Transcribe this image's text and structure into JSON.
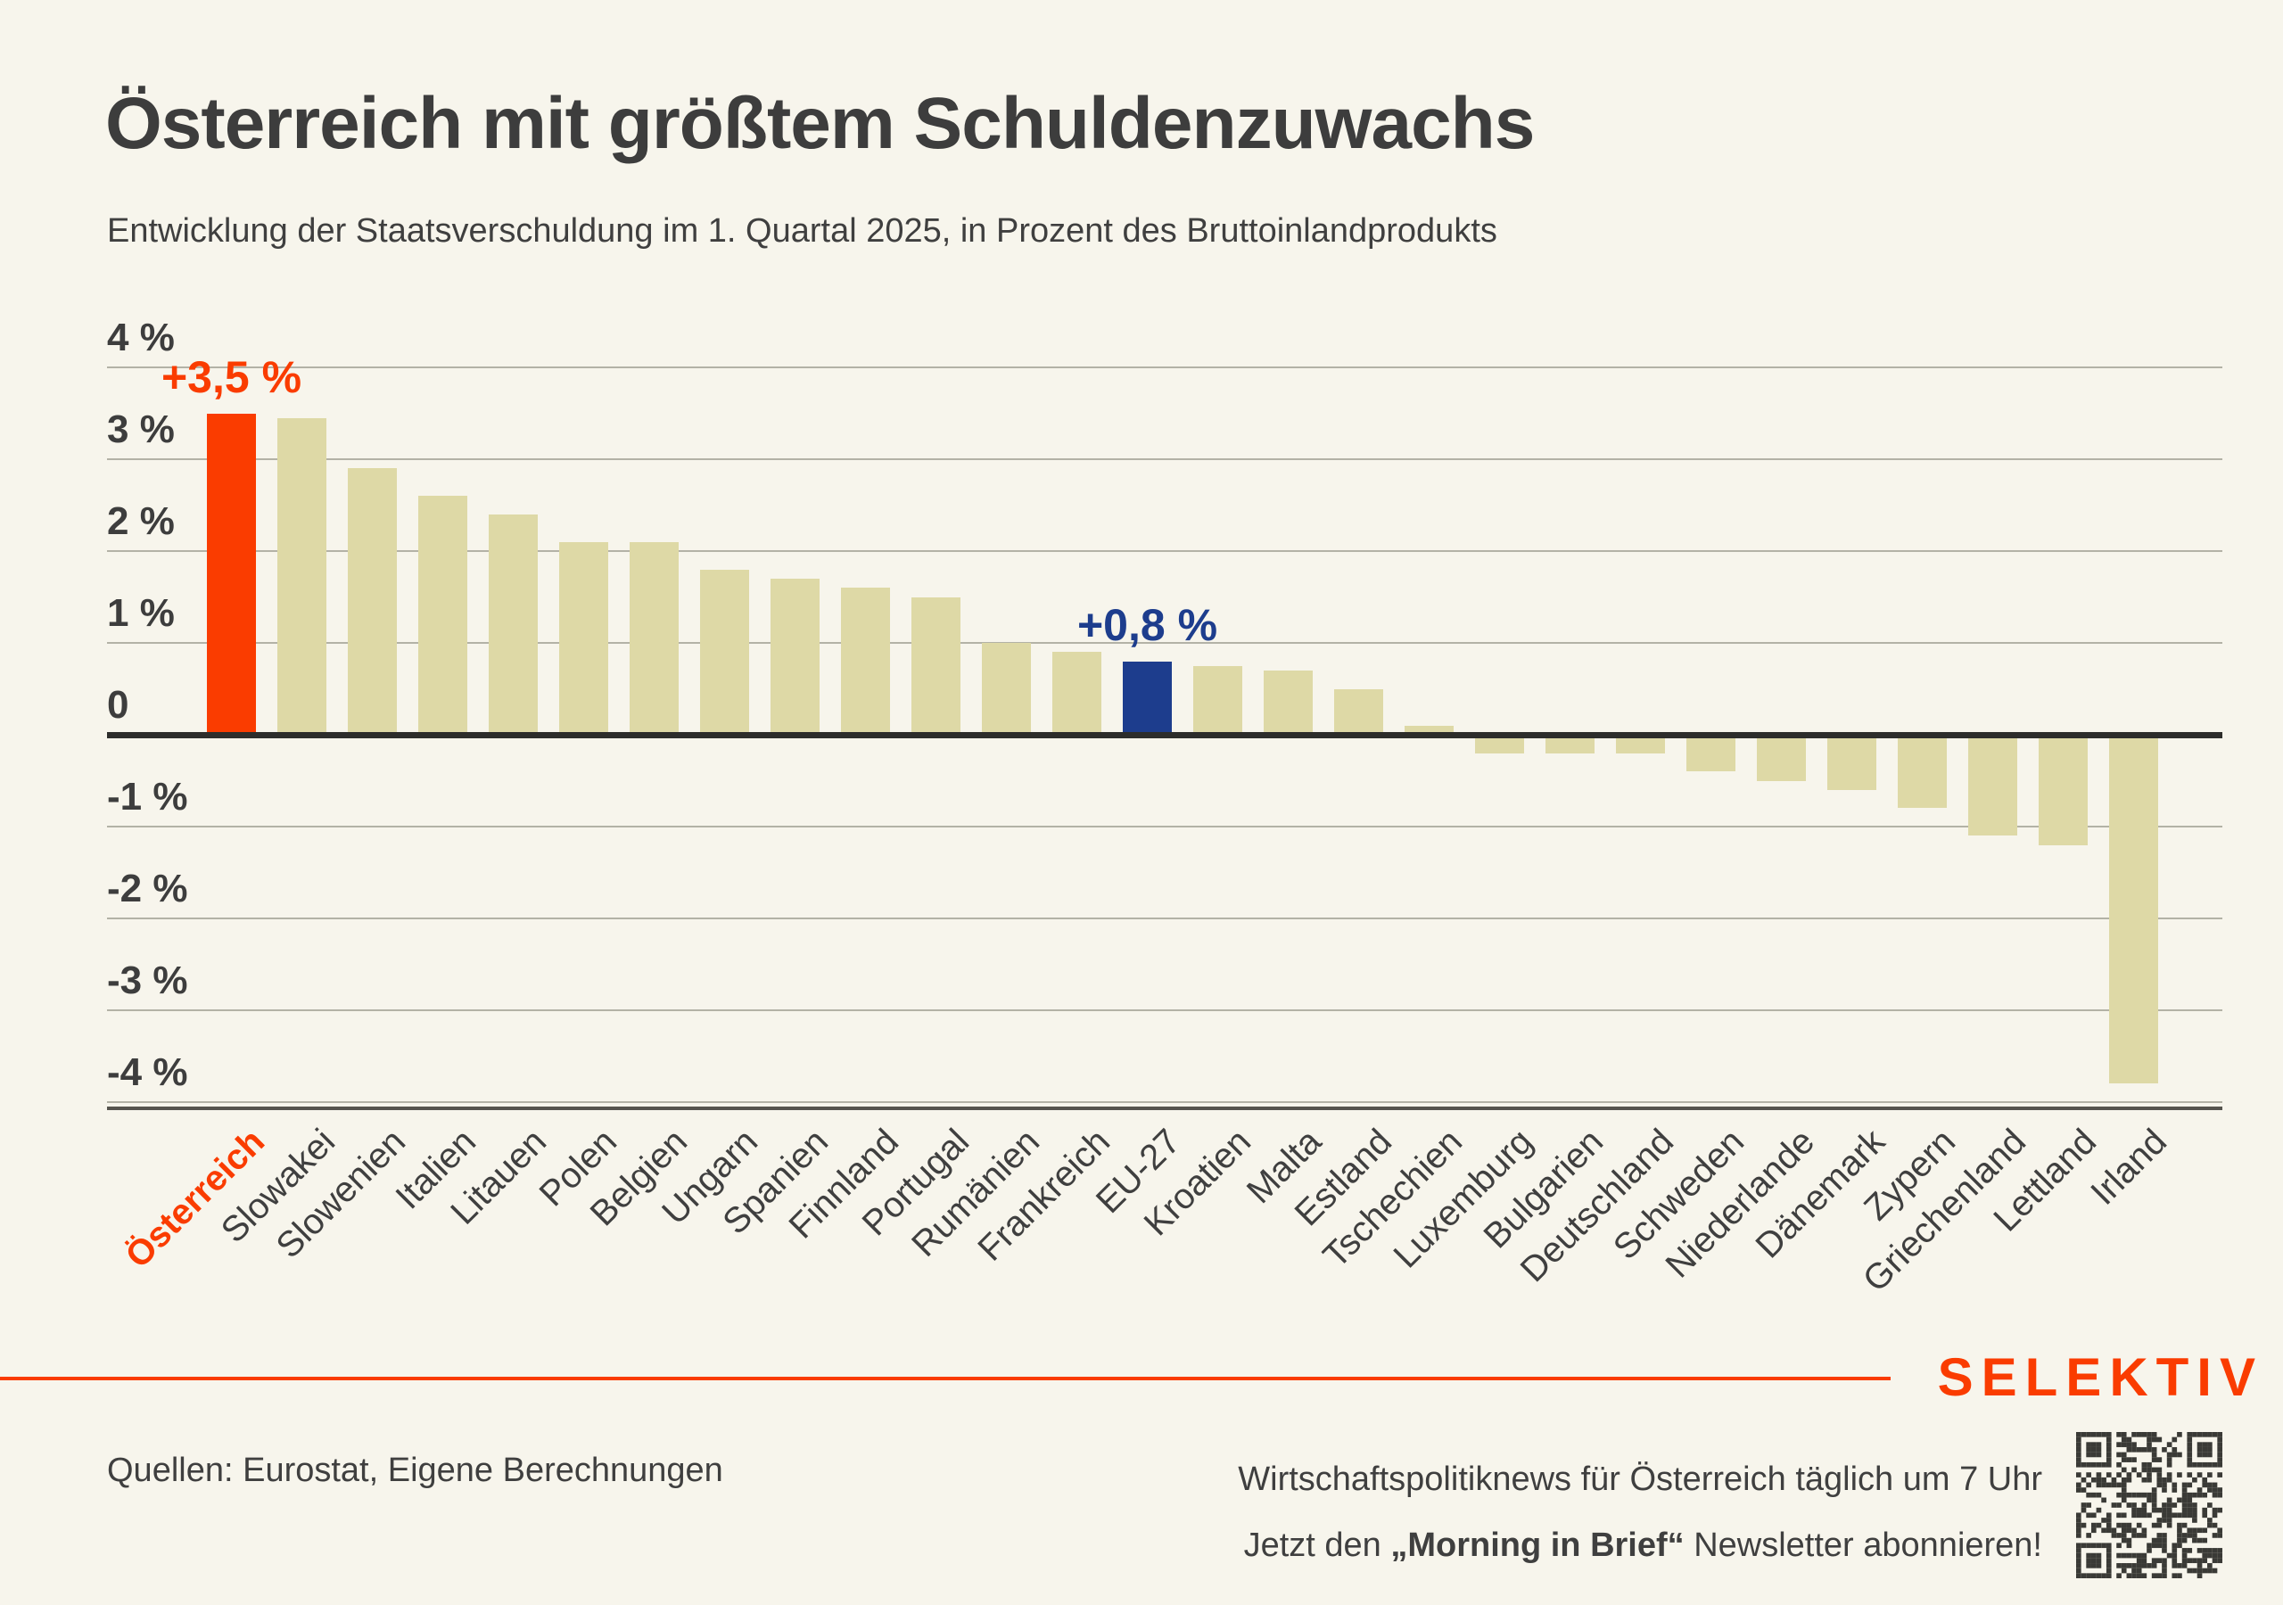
{
  "header": {
    "title": "Österreich mit größtem Schuldenzuwachs",
    "subtitle": "Entwicklung der Staatsverschuldung im 1. Quartal 2025, in Prozent des Bruttoinlandprodukts"
  },
  "chart_data": {
    "type": "bar",
    "title": "Österreich mit größtem Schuldenzuwachs",
    "subtitle": "Entwicklung der Staatsverschuldung im 1. Quartal 2025, in Prozent des Bruttoinlandprodukts",
    "unit": "Prozentpunkte des BIP",
    "categories": [
      "Österreich",
      "Slowakei",
      "Slowenien",
      "Italien",
      "Litauen",
      "Polen",
      "Belgien",
      "Ungarn",
      "Spanien",
      "Finnland",
      "Portugal",
      "Rumänien",
      "Frankreich",
      "EU-27",
      "Kroatien",
      "Malta",
      "Estland",
      "Tschechien",
      "Luxemburg",
      "Bulgarien",
      "Deutschland",
      "Schweden",
      "Niederlande",
      "Dänemark",
      "Zypern",
      "Griechenland",
      "Lettland",
      "Irland"
    ],
    "values": [
      3.5,
      3.45,
      2.9,
      2.6,
      2.4,
      2.1,
      2.1,
      1.8,
      1.7,
      1.6,
      1.5,
      1.0,
      0.9,
      0.8,
      0.75,
      0.7,
      0.5,
      0.1,
      -0.2,
      -0.2,
      -0.2,
      -0.4,
      -0.5,
      -0.6,
      -0.8,
      -1.1,
      -1.2,
      -3.8
    ],
    "bar_color_default": "#ded9a6",
    "bar_colors": {
      "0": "#fa3c00",
      "13": "#1d3d8d"
    },
    "annotations": [
      {
        "index": 0,
        "text": "+3,5 %",
        "color": "#fa3c00"
      },
      {
        "index": 13,
        "text": "+0,8 %",
        "color": "#1d3d8d"
      }
    ],
    "x_highlight": {
      "index": 0,
      "color": "#fa3c00"
    },
    "x_tick_rotation": 45,
    "yticks": [
      {
        "v": 4,
        "label": "4 %"
      },
      {
        "v": 3,
        "label": "3 %"
      },
      {
        "v": 2,
        "label": "2 %"
      },
      {
        "v": 1,
        "label": "1 %"
      },
      {
        "v": 0,
        "label": "0"
      },
      {
        "v": -1,
        "label": "-1 %"
      },
      {
        "v": -2,
        "label": "-2 %"
      },
      {
        "v": -3,
        "label": "-3 %"
      },
      {
        "v": -4,
        "label": "-4 %"
      }
    ],
    "ylim": [
      -4.3,
      4.3
    ],
    "grid": true,
    "legend": false
  },
  "footer": {
    "source": "Quellen: Eurostat, Eigene Berechnungen",
    "newsletter_line1": "Wirtschaftspolitiknews für Österreich täglich um 7 Uhr",
    "newsletter_line2_prefix": "Jetzt den ",
    "newsletter_line2_bold": "„Morning in Brief“",
    "newsletter_line2_suffix": " Newsletter abonnieren!",
    "brand": "SELEKTIV",
    "qr_icon": "qr-code"
  },
  "colors": {
    "background": "#f7f5ec",
    "bar_default": "#ded9a6",
    "accent_orange": "#fa3c00",
    "accent_navy": "#1d3d8d",
    "text": "#3d3d3d",
    "gridline": "#b3b2a6",
    "zero_line": "#2d2d2b"
  }
}
